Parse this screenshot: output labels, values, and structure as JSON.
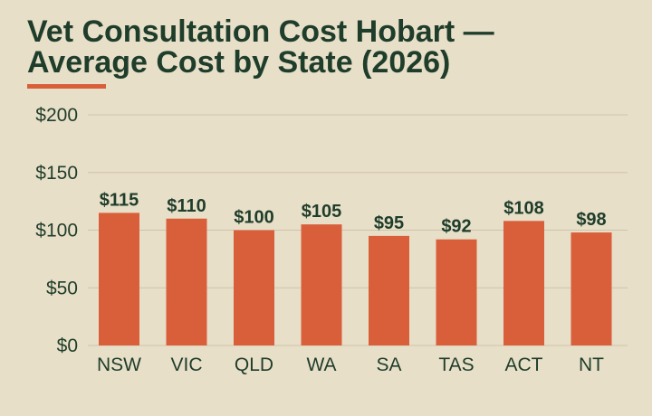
{
  "colors": {
    "background": "#e8dfc8",
    "text": "#1f3d2b",
    "bar": "#d95f3b",
    "accent": "#d95f3b",
    "grid": "#cfc3aa"
  },
  "chart_data": {
    "type": "bar",
    "title": "Vet Consultation Cost Hobart — Average Cost by State (2026)",
    "categories": [
      "NSW",
      "VIC",
      "QLD",
      "WA",
      "SA",
      "TAS",
      "ACT",
      "NT"
    ],
    "values": [
      115,
      110,
      100,
      105,
      95,
      92,
      108,
      98
    ],
    "value_labels": [
      "$115",
      "$110",
      "$100",
      "$105",
      "$95",
      "$92",
      "$108",
      "$98"
    ],
    "xlabel": "",
    "ylabel": "",
    "ylim": [
      0,
      200
    ],
    "yticks": [
      0,
      50,
      100,
      150,
      200
    ],
    "ytick_labels": [
      "$0",
      "$50",
      "$100",
      "$150",
      "$200"
    ],
    "grid": true,
    "legend": "none"
  }
}
